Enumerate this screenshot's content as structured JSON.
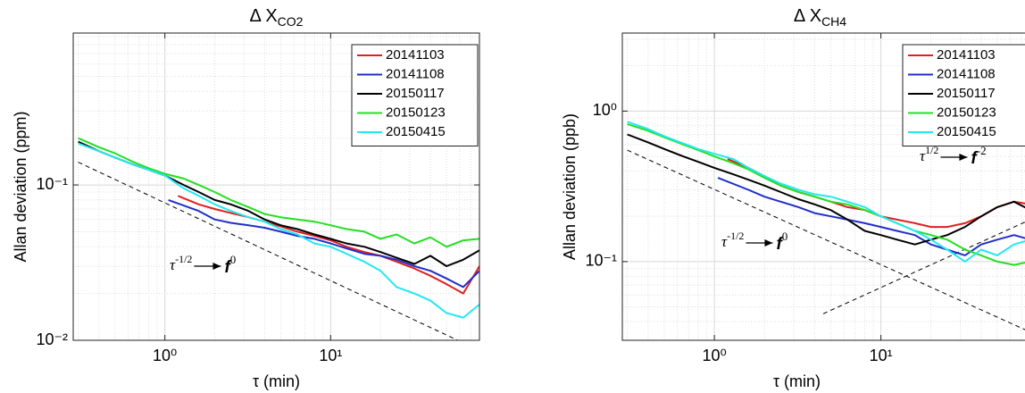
{
  "chart_data": [
    {
      "type": "line",
      "title": "Δ X",
      "title_sub": "CO2",
      "xlabel": "τ (min)",
      "ylabel": "Allan deviation (ppm)",
      "log_x": true,
      "log_y": true,
      "grid": true,
      "minor_grid": true,
      "legend": "upper right",
      "xlim": [
        0.28,
        79
      ],
      "ylim": [
        0.01,
        0.95
      ],
      "xticks": [
        {
          "value": 1,
          "label": "10⁰"
        },
        {
          "value": 10,
          "label": "10¹"
        }
      ],
      "yticks": [
        {
          "value": 0.01,
          "label": "10⁻²"
        },
        {
          "value": 0.1,
          "label": "10⁻¹"
        }
      ],
      "series": [
        {
          "name": "20141103",
          "color": "#e02020",
          "x": [
            1.2,
            1.6,
            2,
            2.5,
            3.2,
            4,
            5,
            6.3,
            8,
            10,
            12.5,
            16,
            20,
            25,
            32,
            40,
            50,
            63,
            79
          ],
          "values": [
            0.085,
            0.075,
            0.07,
            0.066,
            0.062,
            0.058,
            0.054,
            0.05,
            0.047,
            0.044,
            0.04,
            0.037,
            0.035,
            0.032,
            0.029,
            0.026,
            0.023,
            0.02,
            0.03
          ]
        },
        {
          "name": "20141108",
          "color": "#1f2fc8",
          "x": [
            1.05,
            1.6,
            2,
            2.5,
            3.2,
            4,
            5,
            6.3,
            8,
            10,
            12.5,
            16,
            20,
            25,
            32,
            40,
            50,
            63,
            79
          ],
          "values": [
            0.08,
            0.068,
            0.06,
            0.057,
            0.055,
            0.053,
            0.05,
            0.047,
            0.045,
            0.042,
            0.039,
            0.036,
            0.035,
            0.033,
            0.03,
            0.028,
            0.025,
            0.022,
            0.028
          ]
        },
        {
          "name": "20150117",
          "color": "#000000",
          "x": [
            0.3,
            0.4,
            0.5,
            0.65,
            0.8,
            1,
            1.3,
            1.6,
            2,
            2.5,
            3.2,
            4,
            5,
            6.3,
            8,
            10,
            12.5,
            16,
            20,
            25,
            32,
            40,
            50,
            63,
            79
          ],
          "values": [
            0.19,
            0.165,
            0.15,
            0.135,
            0.125,
            0.115,
            0.1,
            0.09,
            0.08,
            0.075,
            0.068,
            0.06,
            0.055,
            0.052,
            0.048,
            0.045,
            0.042,
            0.04,
            0.037,
            0.034,
            0.031,
            0.035,
            0.03,
            0.033,
            0.038
          ]
        },
        {
          "name": "20150123",
          "color": "#22e022",
          "x": [
            0.3,
            0.4,
            0.5,
            0.65,
            0.8,
            1,
            1.3,
            1.6,
            2,
            2.5,
            3.2,
            4,
            5,
            6.3,
            8,
            10,
            12.5,
            16,
            20,
            25,
            32,
            40,
            50,
            63,
            79
          ],
          "values": [
            0.2,
            0.175,
            0.16,
            0.14,
            0.128,
            0.118,
            0.11,
            0.1,
            0.09,
            0.08,
            0.072,
            0.065,
            0.062,
            0.06,
            0.058,
            0.055,
            0.052,
            0.05,
            0.045,
            0.048,
            0.042,
            0.046,
            0.04,
            0.044,
            0.045
          ]
        },
        {
          "name": "20150415",
          "color": "#22e8f0",
          "x": [
            0.3,
            0.4,
            0.5,
            0.65,
            0.8,
            1,
            1.3,
            1.6,
            2,
            2.5,
            3.2,
            4,
            5,
            6.3,
            8,
            10,
            12.5,
            16,
            20,
            25,
            32,
            40,
            50,
            63,
            79
          ],
          "values": [
            0.185,
            0.165,
            0.15,
            0.135,
            0.125,
            0.115,
            0.095,
            0.085,
            0.075,
            0.068,
            0.062,
            0.058,
            0.052,
            0.048,
            0.042,
            0.04,
            0.036,
            0.032,
            0.028,
            0.022,
            0.02,
            0.018,
            0.015,
            0.014,
            0.017
          ]
        }
      ],
      "reference_lines": [
        {
          "x": [
            0.3,
            79
          ],
          "values": [
            0.14,
            0.0086
          ]
        }
      ],
      "annotations": [
        {
          "text": "τ",
          "sup": "-1/2",
          "target": "f",
          "target_sup": "0"
        }
      ]
    },
    {
      "type": "line",
      "title": "Δ X",
      "title_sub": "CH4",
      "xlabel": "τ (min)",
      "ylabel": "Allan deviation (ppb)",
      "log_x": true,
      "log_y": true,
      "grid": true,
      "minor_grid": true,
      "legend": "upper right",
      "xlim": [
        0.28,
        79
      ],
      "ylim": [
        0.03,
        3.3
      ],
      "xticks": [
        {
          "value": 1,
          "label": "10⁰"
        },
        {
          "value": 10,
          "label": "10¹"
        }
      ],
      "yticks": [
        {
          "value": 0.1,
          "label": "10⁻¹"
        },
        {
          "value": 1,
          "label": "10⁰"
        }
      ],
      "series": [
        {
          "name": "20141103",
          "color": "#e02020",
          "x": [
            1.2,
            1.6,
            2,
            2.5,
            3.2,
            4,
            5,
            6.3,
            8,
            10,
            12.5,
            16,
            20,
            25,
            32,
            40,
            50,
            63,
            79
          ],
          "values": [
            0.48,
            0.42,
            0.37,
            0.32,
            0.29,
            0.27,
            0.25,
            0.23,
            0.22,
            0.2,
            0.19,
            0.18,
            0.17,
            0.17,
            0.18,
            0.2,
            0.23,
            0.25,
            0.24
          ]
        },
        {
          "name": "20141108",
          "color": "#1f2fc8",
          "x": [
            1.05,
            1.6,
            2,
            2.5,
            3.2,
            4,
            5,
            6.3,
            8,
            10,
            12.5,
            16,
            20,
            25,
            32,
            40,
            50,
            63,
            79
          ],
          "values": [
            0.36,
            0.3,
            0.27,
            0.25,
            0.23,
            0.21,
            0.2,
            0.19,
            0.18,
            0.17,
            0.16,
            0.15,
            0.13,
            0.12,
            0.11,
            0.13,
            0.14,
            0.15,
            0.14
          ]
        },
        {
          "name": "20150117",
          "color": "#000000",
          "x": [
            0.3,
            0.4,
            0.5,
            0.65,
            0.8,
            1,
            1.3,
            1.6,
            2,
            2.5,
            3.2,
            4,
            5,
            6.3,
            8,
            10,
            12.5,
            16,
            20,
            25,
            32,
            40,
            50,
            63,
            79
          ],
          "values": [
            0.7,
            0.62,
            0.56,
            0.5,
            0.46,
            0.42,
            0.38,
            0.35,
            0.32,
            0.29,
            0.26,
            0.24,
            0.22,
            0.19,
            0.16,
            0.15,
            0.14,
            0.13,
            0.14,
            0.15,
            0.17,
            0.2,
            0.23,
            0.25,
            0.22
          ]
        },
        {
          "name": "20150123",
          "color": "#22e022",
          "x": [
            0.3,
            0.4,
            0.5,
            0.65,
            0.8,
            1,
            1.3,
            1.6,
            2,
            2.5,
            3.2,
            4,
            5,
            6.3,
            8,
            10,
            12.5,
            16,
            20,
            25,
            32,
            40,
            50,
            63,
            79
          ],
          "values": [
            0.82,
            0.74,
            0.67,
            0.6,
            0.55,
            0.5,
            0.45,
            0.41,
            0.36,
            0.32,
            0.29,
            0.27,
            0.25,
            0.24,
            0.22,
            0.2,
            0.18,
            0.16,
            0.15,
            0.14,
            0.12,
            0.11,
            0.1,
            0.095,
            0.1
          ]
        },
        {
          "name": "20150415",
          "color": "#22e8f0",
          "x": [
            0.3,
            0.4,
            0.5,
            0.65,
            0.8,
            1,
            1.3,
            1.6,
            2,
            2.5,
            3.2,
            4,
            5,
            6.3,
            8,
            10,
            12.5,
            16,
            20,
            25,
            32,
            40,
            50,
            63,
            79
          ],
          "values": [
            0.85,
            0.76,
            0.68,
            0.61,
            0.56,
            0.52,
            0.48,
            0.42,
            0.37,
            0.33,
            0.3,
            0.28,
            0.27,
            0.25,
            0.23,
            0.2,
            0.18,
            0.16,
            0.14,
            0.12,
            0.1,
            0.12,
            0.11,
            0.13,
            0.14
          ]
        }
      ],
      "reference_lines": [
        {
          "x": [
            0.3,
            79
          ],
          "values": [
            0.55,
            0.034
          ]
        },
        {
          "x": [
            4.5,
            79
          ],
          "values": [
            0.045,
            0.19
          ]
        }
      ],
      "annotations": [
        {
          "text": "τ",
          "sup": "-1/2",
          "target": "f",
          "target_sup": "0"
        },
        {
          "text": "τ",
          "sup": "1/2",
          "target": "f",
          "target_sup": "-2"
        }
      ]
    }
  ]
}
